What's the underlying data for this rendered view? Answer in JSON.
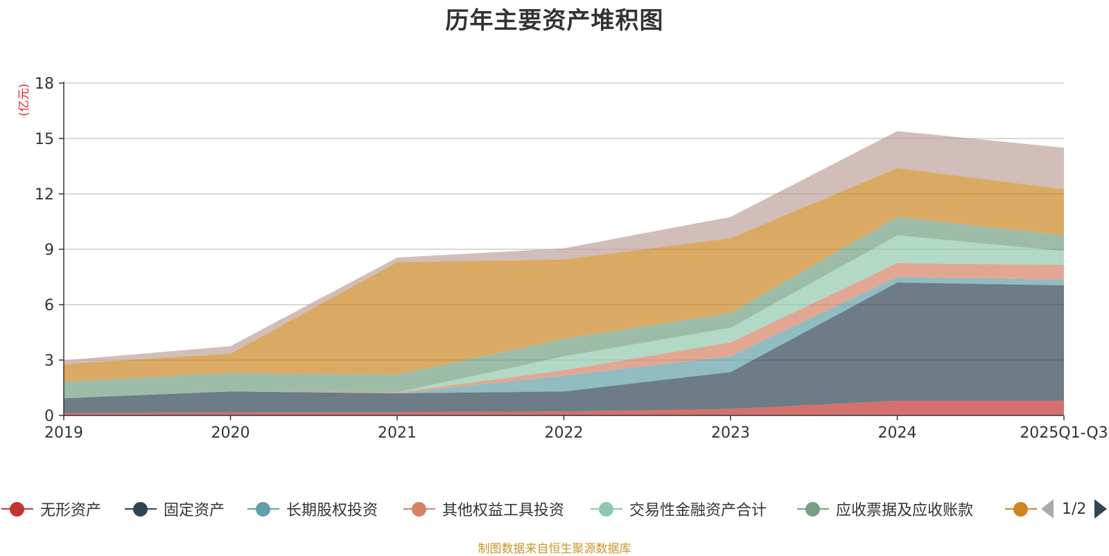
{
  "chart_data": {
    "type": "area",
    "stacked": true,
    "title": "历年主要资产堆积图",
    "unit_label": "(亿元)",
    "categories": [
      "2019",
      "2020",
      "2021",
      "2022",
      "2023",
      "2024",
      "2025Q1-Q3"
    ],
    "y_ticks": [
      "0",
      "3",
      "6",
      "9",
      "12",
      "15",
      "18"
    ],
    "ylim": [
      0,
      18
    ],
    "grid": true,
    "series": [
      {
        "name": "无形资产",
        "color": "#c23531",
        "values": [
          0.13,
          0.17,
          0.18,
          0.22,
          0.35,
          0.8,
          0.8
        ]
      },
      {
        "name": "固定资产",
        "color": "#2f4554",
        "values": [
          0.8,
          1.13,
          1.02,
          1.08,
          2.0,
          6.4,
          6.25
        ]
      },
      {
        "name": "长期股权投资",
        "color": "#61a0a8",
        "values": [
          0.0,
          0.0,
          0.0,
          0.85,
          0.85,
          0.3,
          0.3
        ]
      },
      {
        "name": "其他权益工具投资",
        "color": "#d48265",
        "values": [
          0.0,
          0.0,
          0.05,
          0.3,
          0.75,
          0.75,
          0.8
        ]
      },
      {
        "name": "交易性金融资产合计",
        "color": "#91c7ae",
        "values": [
          0.0,
          0.0,
          0.0,
          0.75,
          0.8,
          1.5,
          0.75
        ]
      },
      {
        "name": "应收票据及应收账款",
        "color": "#749f83",
        "values": [
          0.9,
          1.0,
          0.95,
          0.95,
          0.8,
          1.0,
          0.85
        ]
      },
      {
        "name": "",
        "color": "#ca8622",
        "values": [
          0.95,
          1.05,
          6.1,
          4.3,
          4.05,
          2.65,
          2.5
        ]
      },
      {
        "name": "",
        "color": "#bda29a",
        "values": [
          0.2,
          0.4,
          0.25,
          0.6,
          1.15,
          2.0,
          2.25
        ]
      }
    ]
  },
  "legend": {
    "items": [
      {
        "label": "无形资产",
        "color": "#c23531"
      },
      {
        "label": "固定资产",
        "color": "#2f4554"
      },
      {
        "label": "长期股权投资",
        "color": "#61a0a8"
      },
      {
        "label": "其他权益工具投资",
        "color": "#d48265"
      },
      {
        "label": "交易性金融资产合计",
        "color": "#91c7ae"
      },
      {
        "label": "应收票据及应收账款",
        "color": "#749f83"
      },
      {
        "label": "",
        "color": "#ca8622"
      }
    ],
    "pager": "1/2"
  },
  "source_note": "制图数据来自恒生聚源数据库"
}
